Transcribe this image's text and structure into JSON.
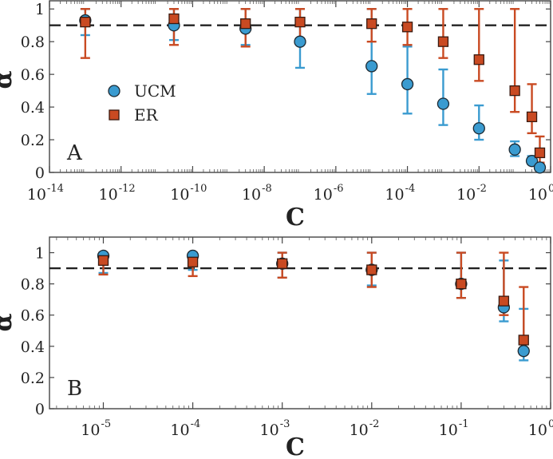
{
  "chart_data": [
    {
      "type": "scatter",
      "panel_label": "A",
      "xlabel": "C",
      "ylabel": "α",
      "xscale": "log",
      "xlim": [
        1e-14,
        1
      ],
      "ylim": [
        0,
        1.05
      ],
      "xticks": [
        {
          "base": "10",
          "exp": "-14",
          "value": 1e-14
        },
        {
          "base": "10",
          "exp": "-12",
          "value": 1e-12
        },
        {
          "base": "10",
          "exp": "-10",
          "value": 1e-10
        },
        {
          "base": "10",
          "exp": "-8",
          "value": 1e-08
        },
        {
          "base": "10",
          "exp": "-6",
          "value": 1e-06
        },
        {
          "base": "10",
          "exp": "-4",
          "value": 0.0001
        },
        {
          "base": "10",
          "exp": "-2",
          "value": 0.01
        },
        {
          "base": "10",
          "exp": "0",
          "value": 1
        }
      ],
      "yticks": [
        "0",
        "0.2",
        "0.4",
        "0.6",
        "0.8",
        "1"
      ],
      "reference_line": 0.9,
      "legend": {
        "position": "left",
        "entries": [
          "UCM",
          "ER"
        ]
      },
      "series": [
        {
          "name": "UCM",
          "marker": "circle",
          "color": "#3a9bd0",
          "x": [
            1e-13,
            3e-11,
            3e-09,
            1e-07,
            1e-05,
            0.0001,
            0.001,
            0.01,
            0.1,
            0.3,
            0.5
          ],
          "y": [
            0.93,
            0.9,
            0.88,
            0.8,
            0.65,
            0.54,
            0.42,
            0.27,
            0.14,
            0.07,
            0.03
          ],
          "err_low": [
            0.84,
            0.81,
            0.78,
            0.64,
            0.48,
            0.36,
            0.29,
            0.2,
            0.1,
            0.05,
            0.02
          ],
          "err_high": [
            1.0,
            1.0,
            1.0,
            1.0,
            1.0,
            0.77,
            0.63,
            0.41,
            0.19,
            0.1,
            0.06
          ]
        },
        {
          "name": "ER",
          "marker": "square",
          "color": "#c94a22",
          "x": [
            1e-13,
            3e-11,
            3e-09,
            1e-07,
            1e-05,
            0.0001,
            0.001,
            0.01,
            0.1,
            0.3,
            0.5
          ],
          "y": [
            0.92,
            0.94,
            0.91,
            0.92,
            0.91,
            0.89,
            0.8,
            0.69,
            0.5,
            0.34,
            0.12
          ],
          "err_low": [
            0.7,
            0.78,
            0.77,
            0.82,
            0.8,
            0.78,
            0.7,
            0.56,
            0.37,
            0.24,
            0.06
          ],
          "err_high": [
            1.0,
            1.0,
            1.0,
            1.0,
            1.0,
            1.0,
            1.0,
            1.0,
            1.0,
            0.54,
            0.22
          ]
        }
      ]
    },
    {
      "type": "scatter",
      "panel_label": "B",
      "xlabel": "C",
      "ylabel": "α",
      "xscale": "log",
      "xlim": [
        2.5e-06,
        1
      ],
      "ylim": [
        0,
        1.1
      ],
      "xticks": [
        {
          "base": "10",
          "exp": "-5",
          "value": 1e-05
        },
        {
          "base": "10",
          "exp": "-4",
          "value": 0.0001
        },
        {
          "base": "10",
          "exp": "-3",
          "value": 0.001
        },
        {
          "base": "10",
          "exp": "-2",
          "value": 0.01
        },
        {
          "base": "10",
          "exp": "-1",
          "value": 0.1
        },
        {
          "base": "10",
          "exp": "0",
          "value": 1
        }
      ],
      "yticks": [
        "0",
        "0.2",
        "0.4",
        "0.6",
        "0.8",
        "1"
      ],
      "reference_line": 0.9,
      "series": [
        {
          "name": "UCM",
          "marker": "circle",
          "color": "#3a9bd0",
          "x": [
            1e-05,
            0.0001,
            0.001,
            0.01,
            0.1,
            0.3,
            0.5
          ],
          "y": [
            0.98,
            0.98,
            0.93,
            0.89,
            0.8,
            0.65,
            0.37
          ],
          "err_low": [
            0.87,
            0.89,
            0.84,
            0.79,
            0.71,
            0.56,
            0.31
          ],
          "err_high": [
            1.0,
            1.0,
            1.0,
            1.0,
            1.0,
            0.95,
            0.64
          ]
        },
        {
          "name": "ER",
          "marker": "square",
          "color": "#c94a22",
          "x": [
            1e-05,
            0.0001,
            0.001,
            0.01,
            0.1,
            0.3,
            0.5
          ],
          "y": [
            0.95,
            0.94,
            0.93,
            0.89,
            0.8,
            0.69,
            0.44
          ],
          "err_low": [
            0.86,
            0.85,
            0.84,
            0.78,
            0.71,
            0.6,
            0.35
          ],
          "err_high": [
            1.0,
            1.0,
            1.0,
            1.0,
            1.0,
            1.0,
            0.78
          ]
        }
      ]
    }
  ]
}
